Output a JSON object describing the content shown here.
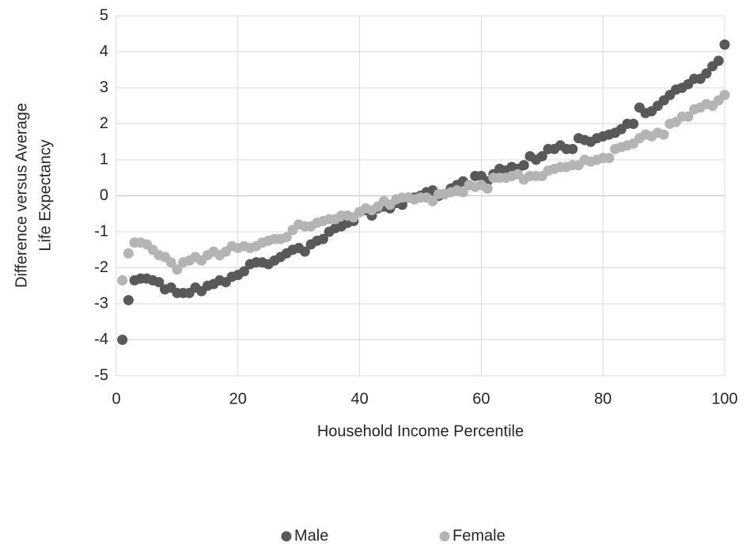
{
  "chart_data": {
    "type": "scatter",
    "xlabel": "Household Income Percentile",
    "ylabel": [
      "Difference versus Average",
      "Life Expectancy"
    ],
    "xlim": [
      0,
      100
    ],
    "xticks": [
      0,
      20,
      40,
      60,
      80,
      100
    ],
    "ylim": [
      -5,
      5
    ],
    "yticks": [
      -5,
      -4,
      -3,
      -2,
      -1,
      0,
      1,
      2,
      3,
      4,
      5
    ],
    "grid": true,
    "legend": "bottom",
    "x": [
      1,
      2,
      3,
      4,
      5,
      6,
      7,
      8,
      9,
      10,
      11,
      12,
      13,
      14,
      15,
      16,
      17,
      18,
      19,
      20,
      21,
      22,
      23,
      24,
      25,
      26,
      27,
      28,
      29,
      30,
      31,
      32,
      33,
      34,
      35,
      36,
      37,
      38,
      39,
      40,
      41,
      42,
      43,
      44,
      45,
      46,
      47,
      48,
      49,
      50,
      51,
      52,
      53,
      54,
      55,
      56,
      57,
      58,
      59,
      60,
      61,
      62,
      63,
      64,
      65,
      66,
      67,
      68,
      69,
      70,
      71,
      72,
      73,
      74,
      75,
      76,
      77,
      78,
      79,
      80,
      81,
      82,
      83,
      84,
      85,
      86,
      87,
      88,
      89,
      90,
      91,
      92,
      93,
      94,
      95,
      96,
      97,
      98,
      99,
      100
    ],
    "series": [
      {
        "name": "Male",
        "color": "#595959",
        "values": [
          -4.0,
          -2.9,
          -2.35,
          -2.3,
          -2.3,
          -2.35,
          -2.4,
          -2.6,
          -2.55,
          -2.7,
          -2.7,
          -2.7,
          -2.55,
          -2.65,
          -2.5,
          -2.45,
          -2.35,
          -2.4,
          -2.25,
          -2.2,
          -2.1,
          -1.9,
          -1.85,
          -1.85,
          -1.9,
          -1.8,
          -1.7,
          -1.6,
          -1.5,
          -1.45,
          -1.55,
          -1.35,
          -1.25,
          -1.2,
          -1.0,
          -0.9,
          -0.85,
          -0.75,
          -0.7,
          -0.45,
          -0.4,
          -0.55,
          -0.35,
          -0.3,
          -0.35,
          -0.2,
          -0.25,
          -0.05,
          -0.05,
          0.0,
          0.1,
          0.15,
          0.0,
          0.05,
          0.2,
          0.3,
          0.4,
          0.3,
          0.55,
          0.55,
          0.4,
          0.6,
          0.75,
          0.7,
          0.8,
          0.75,
          0.85,
          1.1,
          1.0,
          1.1,
          1.3,
          1.3,
          1.4,
          1.3,
          1.3,
          1.6,
          1.55,
          1.5,
          1.6,
          1.65,
          1.7,
          1.75,
          1.85,
          2.0,
          2.0,
          2.45,
          2.3,
          2.35,
          2.5,
          2.65,
          2.8,
          2.95,
          3.0,
          3.1,
          3.25,
          3.25,
          3.4,
          3.6,
          3.75,
          4.2
        ]
      },
      {
        "name": "Female",
        "color": "#b4b4b4",
        "values": [
          -2.35,
          -1.6,
          -1.3,
          -1.3,
          -1.35,
          -1.5,
          -1.65,
          -1.7,
          -1.85,
          -2.05,
          -1.85,
          -1.8,
          -1.7,
          -1.8,
          -1.65,
          -1.55,
          -1.65,
          -1.55,
          -1.4,
          -1.45,
          -1.4,
          -1.45,
          -1.4,
          -1.3,
          -1.25,
          -1.2,
          -1.2,
          -1.15,
          -0.95,
          -0.8,
          -0.85,
          -0.85,
          -0.75,
          -0.7,
          -0.65,
          -0.65,
          -0.55,
          -0.55,
          -0.6,
          -0.45,
          -0.35,
          -0.4,
          -0.3,
          -0.15,
          -0.25,
          -0.1,
          -0.05,
          -0.05,
          -0.1,
          -0.05,
          -0.05,
          -0.15,
          0.05,
          0.05,
          0.1,
          0.15,
          0.1,
          0.3,
          0.25,
          0.3,
          0.2,
          0.5,
          0.5,
          0.5,
          0.55,
          0.6,
          0.45,
          0.55,
          0.55,
          0.55,
          0.7,
          0.75,
          0.8,
          0.8,
          0.85,
          0.85,
          1.0,
          0.95,
          1.0,
          1.05,
          1.05,
          1.3,
          1.35,
          1.4,
          1.45,
          1.6,
          1.7,
          1.65,
          1.75,
          1.7,
          2.0,
          2.05,
          2.2,
          2.2,
          2.4,
          2.45,
          2.55,
          2.5,
          2.65,
          2.8
        ]
      }
    ]
  }
}
